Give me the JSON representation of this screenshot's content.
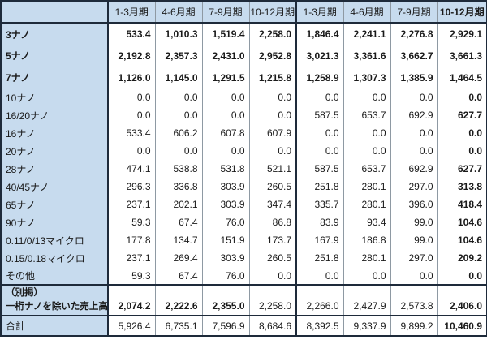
{
  "table": {
    "corner": "",
    "unit_note": "",
    "columns": [
      {
        "label": "1-3月期",
        "bold": false
      },
      {
        "label": "4-6月期",
        "bold": false
      },
      {
        "label": "7-9月期",
        "bold": false
      },
      {
        "label": "10-12月期",
        "bold": false
      },
      {
        "label": "1-3月期",
        "bold": false
      },
      {
        "label": "4-6月期",
        "bold": false
      },
      {
        "label": "7-9月期",
        "bold": false
      },
      {
        "label": "10-12月期",
        "bold": true
      }
    ],
    "rows": [
      {
        "label": "3ナノ",
        "bold_row": true,
        "values": [
          "533.4",
          "1,010.3",
          "1,519.4",
          "2,258.0",
          "1,846.4",
          "2,241.1",
          "2,276.8",
          "2,929.1"
        ]
      },
      {
        "label": "5ナノ",
        "bold_row": true,
        "values": [
          "2,192.8",
          "2,357.3",
          "2,431.0",
          "2,952.8",
          "3,021.3",
          "3,361.6",
          "3,662.7",
          "3,661.3"
        ]
      },
      {
        "label": "7ナノ",
        "bold_row": true,
        "values": [
          "1,126.0",
          "1,145.0",
          "1,291.5",
          "1,215.8",
          "1,258.9",
          "1,307.3",
          "1,385.9",
          "1,464.5"
        ]
      },
      {
        "label": "10ナノ",
        "bold_row": false,
        "values": [
          "0.0",
          "0.0",
          "0.0",
          "0.0",
          "0.0",
          "0.0",
          "0.0",
          "0.0"
        ]
      },
      {
        "label": "16/20ナノ",
        "bold_row": false,
        "values": [
          "0.0",
          "0.0",
          "0.0",
          "0.0",
          "587.5",
          "653.7",
          "692.9",
          "627.7"
        ]
      },
      {
        "label": "16ナノ",
        "bold_row": false,
        "values": [
          "533.4",
          "606.2",
          "607.8",
          "607.9",
          "0.0",
          "0.0",
          "0.0",
          "0.0"
        ]
      },
      {
        "label": "20ナノ",
        "bold_row": false,
        "values": [
          "0.0",
          "0.0",
          "0.0",
          "0.0",
          "0.0",
          "0.0",
          "0.0",
          "0.0"
        ]
      },
      {
        "label": "28ナノ",
        "bold_row": false,
        "values": [
          "474.1",
          "538.8",
          "531.8",
          "521.1",
          "587.5",
          "653.7",
          "692.9",
          "627.7"
        ]
      },
      {
        "label": "40/45ナノ",
        "bold_row": false,
        "values": [
          "296.3",
          "336.8",
          "303.9",
          "260.5",
          "251.8",
          "280.1",
          "297.0",
          "313.8"
        ]
      },
      {
        "label": "65ナノ",
        "bold_row": false,
        "values": [
          "237.1",
          "202.1",
          "303.9",
          "347.4",
          "335.7",
          "280.1",
          "396.0",
          "418.4"
        ]
      },
      {
        "label": "90ナノ",
        "bold_row": false,
        "values": [
          "59.3",
          "67.4",
          "76.0",
          "86.8",
          "83.9",
          "93.4",
          "99.0",
          "104.6"
        ]
      },
      {
        "label": "0.11/0/13マイクロ",
        "bold_row": false,
        "values": [
          "177.8",
          "134.7",
          "151.9",
          "173.7",
          "167.9",
          "186.8",
          "99.0",
          "104.6"
        ]
      },
      {
        "label": "0.15/0.18マイクロ",
        "bold_row": false,
        "values": [
          "237.1",
          "269.4",
          "303.9",
          "260.5",
          "251.8",
          "280.1",
          "297.0",
          "209.2"
        ]
      },
      {
        "label": "その他",
        "bold_row": false,
        "values": [
          "59.3",
          "67.4",
          "76.0",
          "0.0",
          "0.0",
          "0.0",
          "0.0",
          "0.0"
        ]
      }
    ],
    "subtotal_row": {
      "label_line1": "（別掲）",
      "label_line2": "一桁ナノを除いた売上高",
      "values": [
        "2,074.2",
        "2,222.6",
        "2,355.0",
        "2,258.0",
        "2,266.0",
        "2,427.9",
        "2,573.8",
        "2,406.0"
      ],
      "bold": [
        true,
        true,
        true,
        false,
        false,
        false,
        false,
        true
      ]
    },
    "total_row": {
      "label": "合計",
      "values": [
        "5,926.4",
        "6,735.1",
        "7,596.9",
        "8,684.6",
        "8,392.5",
        "9,337.9",
        "9,899.2",
        "10,460.9"
      ]
    }
  },
  "colors": {
    "header_background": "#c7dbee",
    "frame_border": "#1e2a3a",
    "grid_line": "#8e99a3",
    "cell_background": "#ffffff",
    "text": "#1a1a1a"
  }
}
